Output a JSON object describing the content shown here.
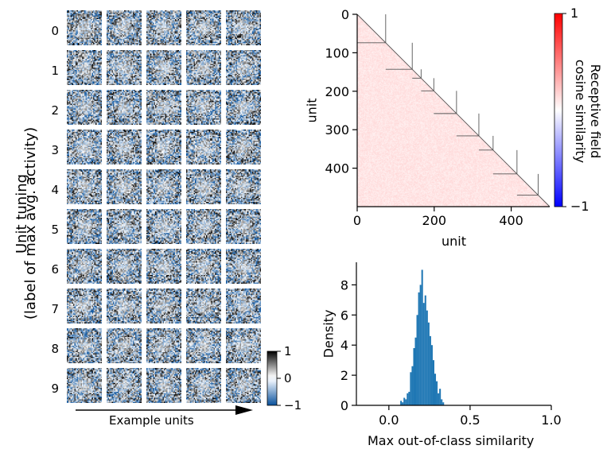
{
  "panel_tiles": {
    "ylabel_line1": "Unit tuning",
    "ylabel_line2": "(label of max avg. activity)",
    "row_labels": [
      "0",
      "1",
      "2",
      "3",
      "4",
      "5",
      "6",
      "7",
      "8",
      "9"
    ],
    "columns_per_row": 5,
    "xlabel": "Example units",
    "colorbar": {
      "ticks": [
        "1",
        "0",
        "−1"
      ],
      "range": [
        -1,
        1
      ]
    }
  },
  "chart_data": [
    {
      "type": "heatmap",
      "title": "",
      "xlabel": "unit",
      "ylabel": "unit",
      "xlim": [
        0,
        500
      ],
      "ylim": [
        500,
        0
      ],
      "xticks": [
        "0",
        "200",
        "400"
      ],
      "yticks": [
        "0",
        "100",
        "200",
        "300",
        "400"
      ],
      "class_block_boundaries": [
        0,
        74,
        143,
        166,
        199,
        258,
        316,
        353,
        415,
        470,
        500
      ],
      "upper_triangle_masked": true,
      "colorbar": {
        "label_line1": "Receptive field",
        "label_line2": "cosine similarity",
        "range": [
          -1,
          1
        ],
        "ticks": [
          "1",
          "−1"
        ],
        "colormap": [
          "#0000ff",
          "#ffffff",
          "#ff0000"
        ]
      }
    },
    {
      "type": "bar",
      "title": "",
      "xlabel": "Max out-of-class similarity",
      "ylabel": "Density",
      "xlim": [
        -0.2,
        1.0
      ],
      "ylim": [
        0,
        9.5
      ],
      "xticks": [
        "0.0",
        "0.5",
        "1.0"
      ],
      "yticks": [
        "0",
        "2",
        "4",
        "6",
        "8"
      ],
      "color": "#1f77b4",
      "bin_width": 0.01,
      "bins": [
        {
          "x": 0.07,
          "y": 0.3
        },
        {
          "x": 0.08,
          "y": 0.2
        },
        {
          "x": 0.09,
          "y": 0.5
        },
        {
          "x": 0.1,
          "y": 0.4
        },
        {
          "x": 0.11,
          "y": 0.8
        },
        {
          "x": 0.12,
          "y": 0.9
        },
        {
          "x": 0.13,
          "y": 2.2
        },
        {
          "x": 0.14,
          "y": 2.6
        },
        {
          "x": 0.15,
          "y": 3.8
        },
        {
          "x": 0.16,
          "y": 4.5
        },
        {
          "x": 0.17,
          "y": 6.0
        },
        {
          "x": 0.18,
          "y": 7.5
        },
        {
          "x": 0.19,
          "y": 8.0
        },
        {
          "x": 0.2,
          "y": 9.0
        },
        {
          "x": 0.21,
          "y": 6.8
        },
        {
          "x": 0.22,
          "y": 7.3
        },
        {
          "x": 0.23,
          "y": 6.3
        },
        {
          "x": 0.24,
          "y": 5.5
        },
        {
          "x": 0.25,
          "y": 4.6
        },
        {
          "x": 0.26,
          "y": 4.0
        },
        {
          "x": 0.27,
          "y": 3.0
        },
        {
          "x": 0.28,
          "y": 2.1
        },
        {
          "x": 0.29,
          "y": 1.6
        },
        {
          "x": 0.3,
          "y": 0.8
        },
        {
          "x": 0.31,
          "y": 1.1
        },
        {
          "x": 0.32,
          "y": 0.4
        },
        {
          "x": 0.33,
          "y": 0.2
        }
      ]
    }
  ]
}
